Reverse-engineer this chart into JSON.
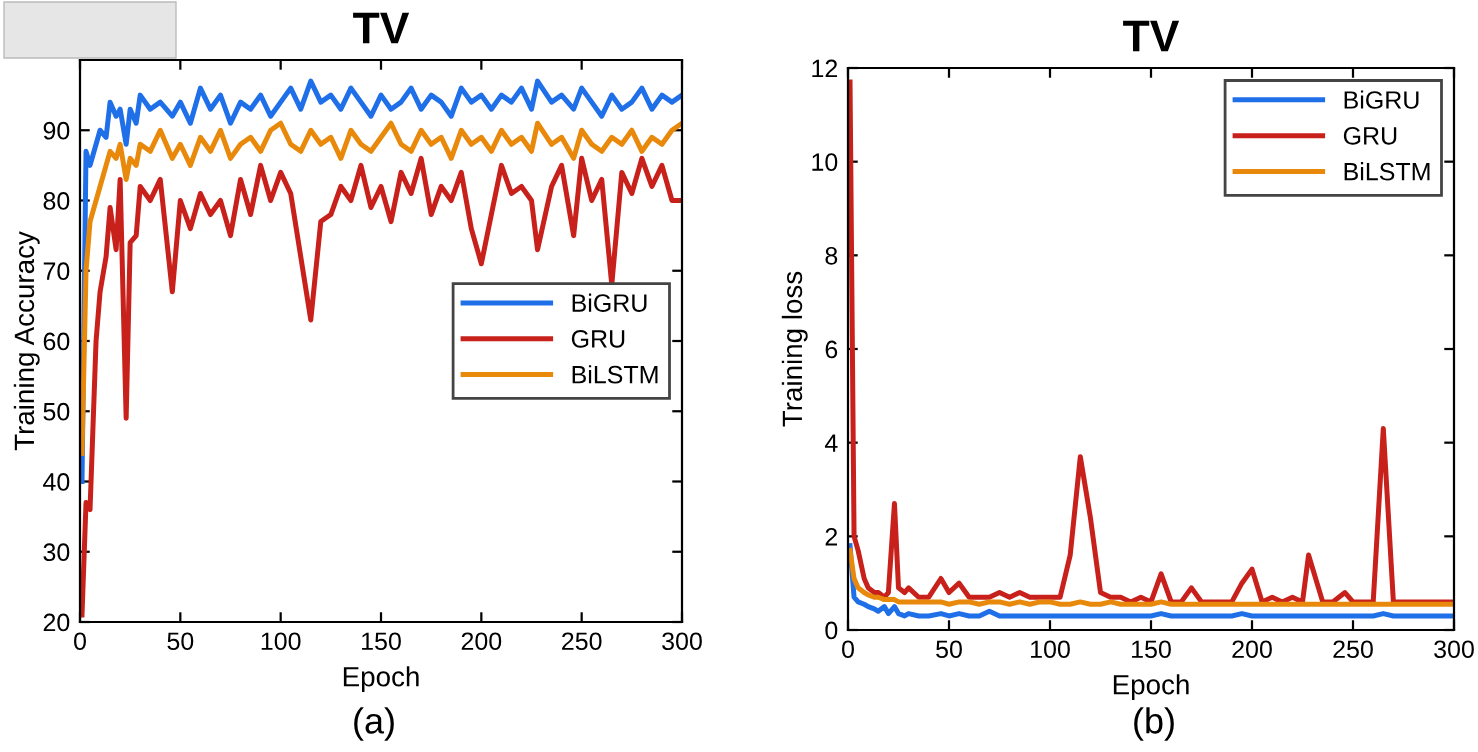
{
  "chart_data": [
    {
      "type": "line",
      "title": "TV",
      "xlabel": "Epoch",
      "ylabel": "Training Accuracy",
      "annotations": [
        "(a)"
      ],
      "x": [
        1,
        3,
        5,
        8,
        10,
        13,
        15,
        18,
        20,
        23,
        25,
        28,
        30,
        35,
        40,
        46,
        50,
        55,
        60,
        65,
        70,
        75,
        80,
        85,
        90,
        95,
        100,
        105,
        110,
        115,
        120,
        125,
        130,
        135,
        140,
        145,
        150,
        155,
        160,
        165,
        170,
        175,
        180,
        185,
        190,
        195,
        200,
        205,
        210,
        215,
        220,
        225,
        228,
        235,
        240,
        246,
        250,
        255,
        260,
        265,
        270,
        275,
        280,
        285,
        290,
        295,
        300
      ],
      "series": [
        {
          "name": "BiGRU",
          "color": "#1f6fe8",
          "values": [
            40,
            87,
            85,
            88,
            90,
            89,
            94,
            92,
            93,
            88,
            93,
            91,
            95,
            93,
            94,
            92,
            94,
            91,
            96,
            93,
            95,
            91,
            94,
            93,
            95,
            92,
            94,
            96,
            93,
            97,
            94,
            95,
            93,
            96,
            94,
            92,
            95,
            93,
            94,
            96,
            93,
            95,
            94,
            92,
            96,
            94,
            95,
            93,
            95,
            94,
            96,
            93,
            97,
            94,
            95,
            93,
            96,
            94,
            92,
            95,
            93,
            94,
            96,
            93,
            95,
            94,
            95
          ]
        },
        {
          "name": "GRU",
          "color": "#c8201a",
          "values": [
            21,
            37,
            36,
            60,
            67,
            72,
            79,
            73,
            83,
            49,
            74,
            75,
            82,
            80,
            83,
            67,
            80,
            76,
            81,
            78,
            80,
            75,
            83,
            78,
            85,
            80,
            84,
            81,
            72,
            63,
            77,
            78,
            82,
            80,
            85,
            79,
            82,
            77,
            84,
            81,
            86,
            78,
            82,
            80,
            84,
            76,
            71,
            78,
            85,
            81,
            82,
            80,
            73,
            82,
            85,
            75,
            86,
            80,
            83,
            68,
            84,
            81,
            86,
            82,
            85,
            80,
            80
          ]
        },
        {
          "name": "BiLSTM",
          "color": "#e8890c",
          "values": [
            44,
            70,
            77,
            80,
            82,
            85,
            87,
            86,
            88,
            83,
            86,
            85,
            88,
            87,
            90,
            86,
            88,
            85,
            89,
            87,
            90,
            86,
            88,
            89,
            87,
            90,
            91,
            88,
            87,
            90,
            88,
            89,
            86,
            90,
            88,
            87,
            89,
            91,
            88,
            87,
            90,
            88,
            89,
            86,
            90,
            88,
            89,
            87,
            90,
            88,
            89,
            87,
            91,
            88,
            89,
            86,
            90,
            88,
            87,
            89,
            88,
            90,
            87,
            89,
            88,
            90,
            91
          ]
        }
      ],
      "xlim": [
        0,
        300
      ],
      "xticks": [
        0,
        50,
        100,
        150,
        200,
        250,
        300
      ],
      "ylim": [
        20,
        100
      ],
      "yticks": [
        20,
        30,
        40,
        50,
        60,
        70,
        80,
        90
      ],
      "legend": "center right",
      "grid": false
    },
    {
      "type": "line",
      "title": "TV",
      "xlabel": "Epoch",
      "ylabel": "Training loss",
      "annotations": [
        "(b)"
      ],
      "x": [
        1,
        3,
        5,
        8,
        10,
        13,
        15,
        18,
        20,
        23,
        25,
        28,
        30,
        35,
        40,
        46,
        50,
        55,
        60,
        65,
        70,
        75,
        80,
        85,
        90,
        95,
        100,
        105,
        110,
        115,
        120,
        125,
        130,
        135,
        140,
        145,
        150,
        155,
        160,
        165,
        170,
        175,
        180,
        185,
        190,
        195,
        200,
        205,
        210,
        215,
        220,
        225,
        228,
        235,
        240,
        246,
        250,
        255,
        260,
        265,
        270,
        275,
        280,
        285,
        290,
        295,
        300
      ],
      "series": [
        {
          "name": "BiGRU",
          "color": "#1f6fe8",
          "values": [
            1.8,
            0.7,
            0.6,
            0.55,
            0.5,
            0.45,
            0.4,
            0.5,
            0.35,
            0.5,
            0.35,
            0.3,
            0.35,
            0.3,
            0.3,
            0.35,
            0.3,
            0.35,
            0.3,
            0.3,
            0.4,
            0.3,
            0.3,
            0.3,
            0.3,
            0.3,
            0.3,
            0.3,
            0.3,
            0.3,
            0.3,
            0.3,
            0.3,
            0.3,
            0.3,
            0.3,
            0.3,
            0.35,
            0.3,
            0.3,
            0.3,
            0.3,
            0.3,
            0.3,
            0.3,
            0.35,
            0.3,
            0.3,
            0.3,
            0.3,
            0.3,
            0.3,
            0.3,
            0.3,
            0.3,
            0.3,
            0.3,
            0.3,
            0.3,
            0.35,
            0.3,
            0.3,
            0.3,
            0.3,
            0.3,
            0.3,
            0.3
          ]
        },
        {
          "name": "GRU",
          "color": "#c8201a",
          "values": [
            11.7,
            2.0,
            1.7,
            1.1,
            0.9,
            0.8,
            0.8,
            0.7,
            0.8,
            2.7,
            0.9,
            0.8,
            0.9,
            0.7,
            0.7,
            1.1,
            0.8,
            1.0,
            0.7,
            0.7,
            0.7,
            0.8,
            0.7,
            0.8,
            0.7,
            0.7,
            0.7,
            0.7,
            1.6,
            3.7,
            2.4,
            0.8,
            0.7,
            0.7,
            0.6,
            0.7,
            0.6,
            1.2,
            0.6,
            0.6,
            0.9,
            0.6,
            0.6,
            0.6,
            0.6,
            1.0,
            1.3,
            0.6,
            0.7,
            0.6,
            0.7,
            0.6,
            1.6,
            0.6,
            0.6,
            0.8,
            0.6,
            0.6,
            0.6,
            4.3,
            0.6,
            0.6,
            0.6,
            0.6,
            0.6,
            0.6,
            0.6
          ]
        },
        {
          "name": "BiLSTM",
          "color": "#e8890c",
          "values": [
            1.7,
            1.1,
            0.9,
            0.8,
            0.75,
            0.7,
            0.7,
            0.65,
            0.65,
            0.65,
            0.6,
            0.6,
            0.6,
            0.6,
            0.6,
            0.6,
            0.55,
            0.6,
            0.6,
            0.55,
            0.6,
            0.6,
            0.55,
            0.6,
            0.55,
            0.6,
            0.6,
            0.55,
            0.55,
            0.6,
            0.55,
            0.55,
            0.6,
            0.55,
            0.55,
            0.55,
            0.55,
            0.6,
            0.55,
            0.55,
            0.55,
            0.55,
            0.55,
            0.55,
            0.55,
            0.55,
            0.55,
            0.55,
            0.55,
            0.55,
            0.55,
            0.55,
            0.55,
            0.55,
            0.55,
            0.55,
            0.55,
            0.55,
            0.55,
            0.55,
            0.55,
            0.55,
            0.55,
            0.55,
            0.55,
            0.55,
            0.55
          ]
        }
      ],
      "xlim": [
        0,
        300
      ],
      "xticks": [
        0,
        50,
        100,
        150,
        200,
        250,
        300
      ],
      "ylim": [
        0,
        12
      ],
      "yticks": [
        0,
        2,
        4,
        6,
        8,
        10,
        12
      ],
      "legend": "top right",
      "grid": false
    }
  ]
}
